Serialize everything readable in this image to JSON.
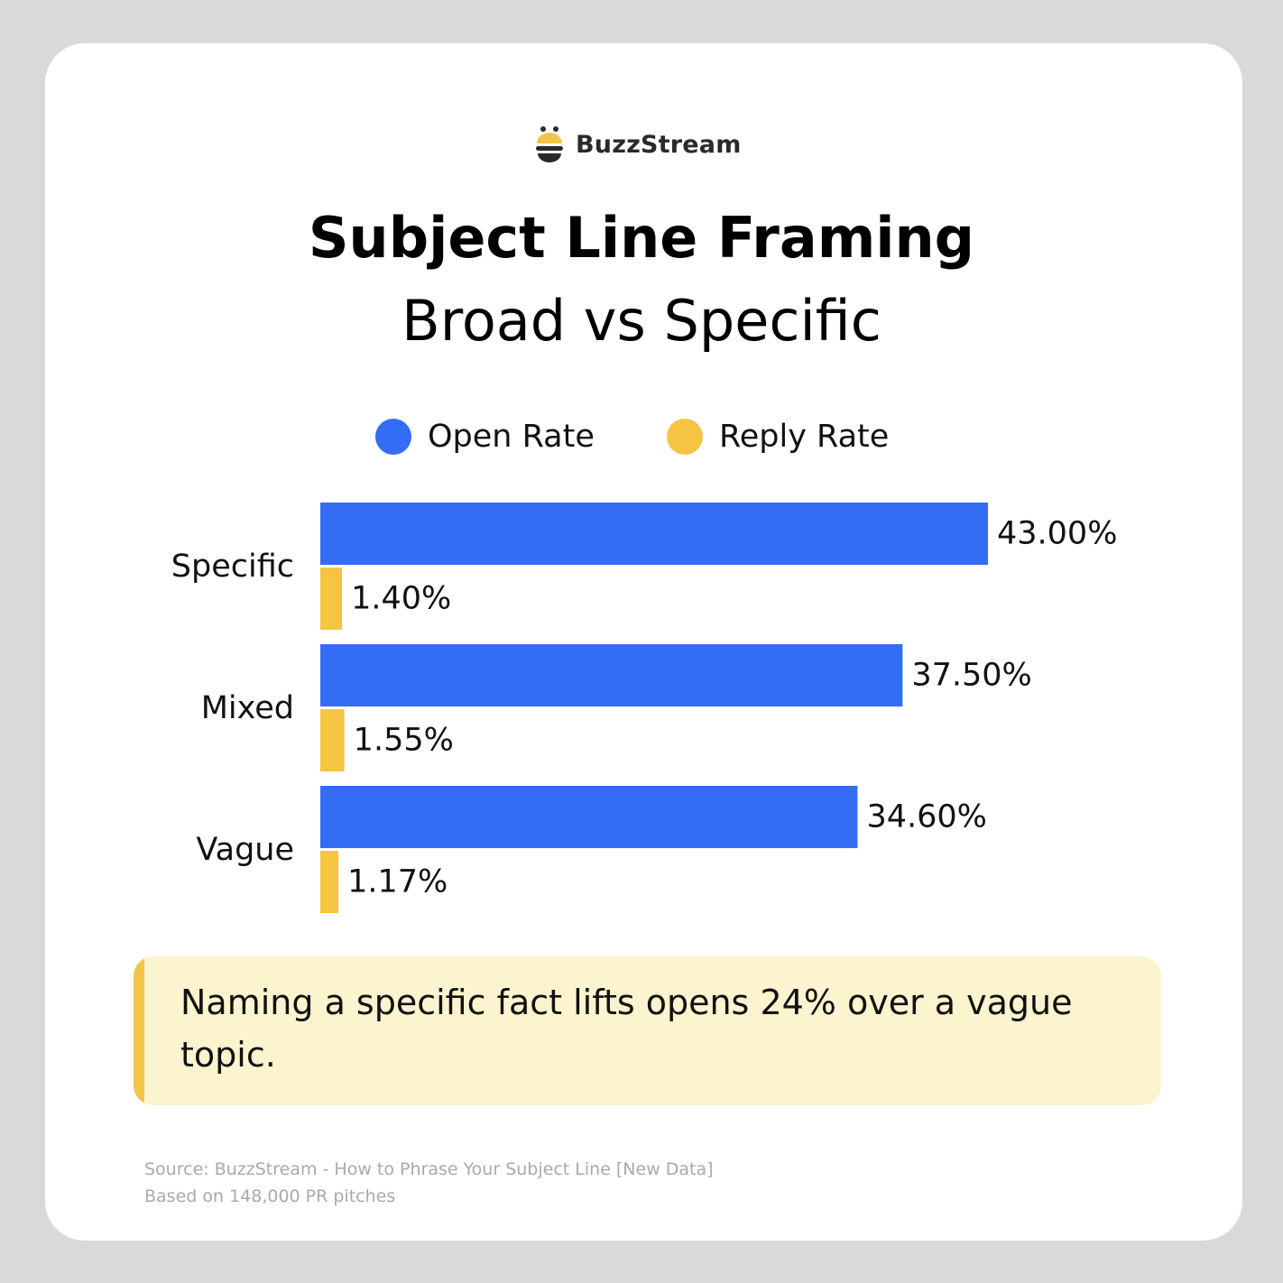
{
  "brand": {
    "name": "BuzzStream",
    "logo_icon": "bee-icon",
    "logo_color": "#f2c44a"
  },
  "colors": {
    "open_rate": "#336df4",
    "reply_rate": "#f5c443",
    "callout_bg": "#fcf3cf",
    "callout_accent": "#f2c44a"
  },
  "chart_data": {
    "type": "bar",
    "orientation": "horizontal",
    "title": "Subject Line Framing",
    "subtitle": "Broad vs Specific",
    "categories": [
      "Specific",
      "Mixed",
      "Vague"
    ],
    "series": [
      {
        "name": "Open Rate",
        "color": "#336df4",
        "values": [
          43.0,
          37.5,
          34.6
        ],
        "labels": [
          "43.00%",
          "37.50%",
          "34.60%"
        ]
      },
      {
        "name": "Reply Rate",
        "color": "#f5c443",
        "values": [
          1.4,
          1.55,
          1.17
        ],
        "labels": [
          "1.40%",
          "1.55%",
          "1.17%"
        ]
      }
    ],
    "xlim": [
      0,
      43
    ],
    "legend_position": "top",
    "grid": false,
    "xlabel": "",
    "ylabel": ""
  },
  "callout": {
    "text": "Naming a specific fact lifts opens 24% over a vague topic."
  },
  "footnotes": {
    "source": "Source: BuzzStream - How to Phrase Your Subject Line [New Data]",
    "basis": "Based on 148,000 PR pitches"
  }
}
